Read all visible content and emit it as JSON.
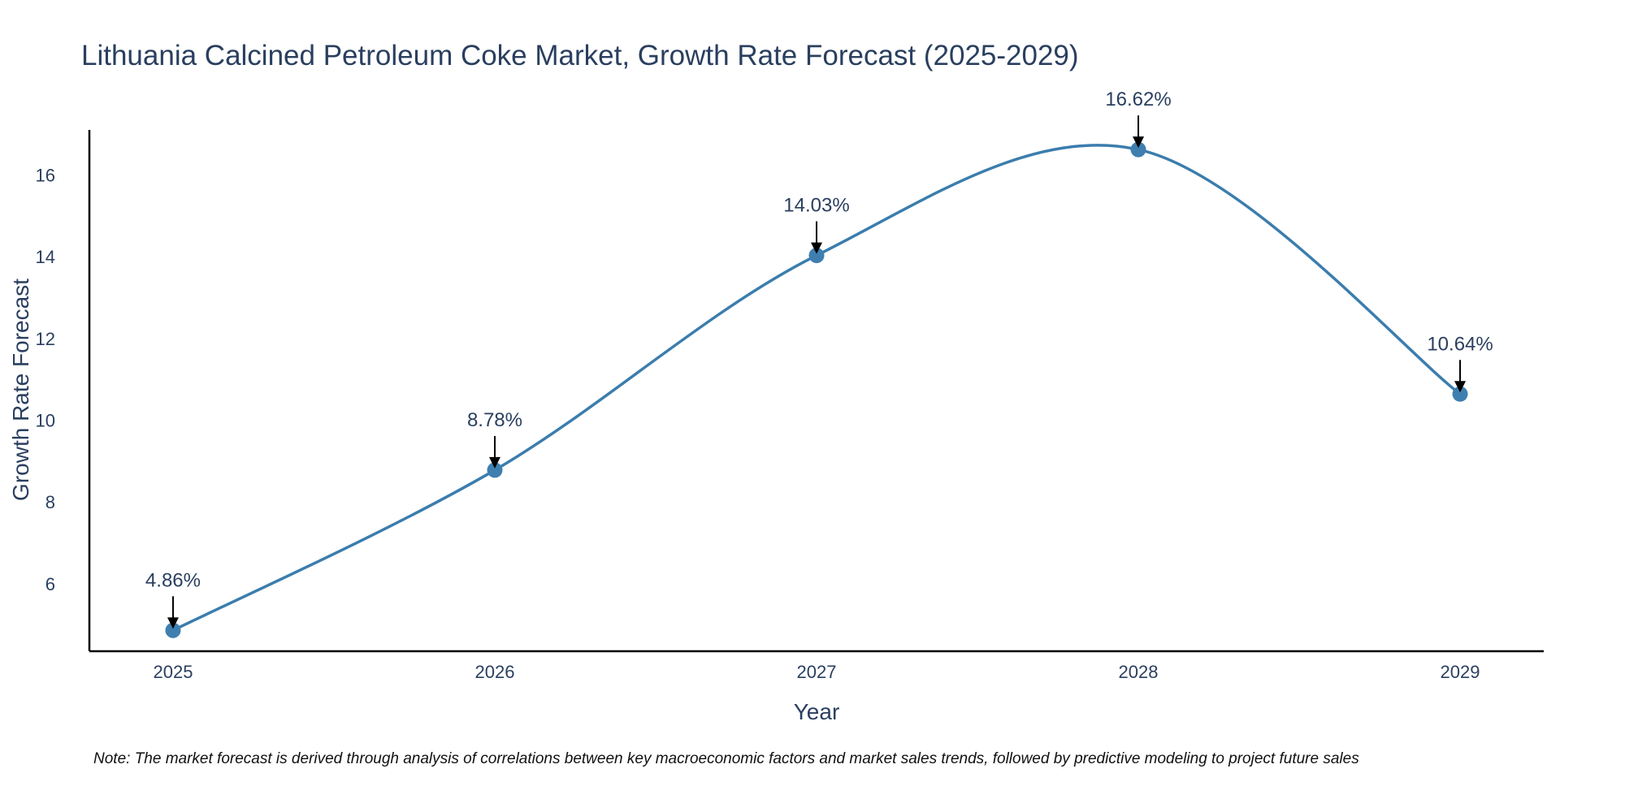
{
  "colors": {
    "line": "#3b7dad",
    "marker": "#3f7fb0",
    "axis": "#000000",
    "text": "#2a3f5f",
    "arrow": "#000000"
  },
  "chart_data": {
    "type": "line",
    "title": "Lithuania Calcined Petroleum Coke Market, Growth Rate Forecast (2025-2029)",
    "xlabel": "Year",
    "ylabel": "Growth Rate Forecast",
    "categories": [
      "2025",
      "2026",
      "2027",
      "2028",
      "2029"
    ],
    "values": [
      4.86,
      8.78,
      14.03,
      16.62,
      10.64
    ],
    "data_labels": [
      "4.86%",
      "8.78%",
      "14.03%",
      "16.62%",
      "10.64%"
    ],
    "yticks": [
      6,
      8,
      10,
      12,
      14,
      16
    ],
    "ylim": [
      4.35,
      17.1
    ],
    "xlim": [
      -0.26,
      4.26
    ],
    "grid": false,
    "line_shape": "spline",
    "note": "Note: The market forecast is derived through analysis of correlations between key macroeconomic factors and market sales trends, followed by predictive modeling to project future sales"
  }
}
